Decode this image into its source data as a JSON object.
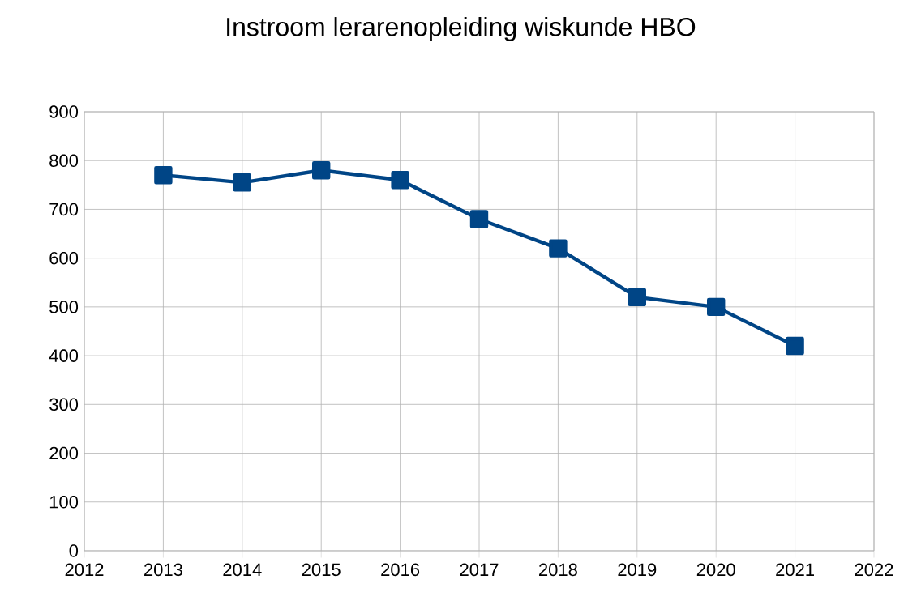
{
  "chart_data": {
    "type": "line",
    "title": "Instroom lerarenopleiding wiskunde HBO",
    "x": [
      2013,
      2014,
      2015,
      2016,
      2017,
      2018,
      2019,
      2020,
      2021
    ],
    "series": [
      {
        "color": "#004586",
        "values": [
          770,
          755,
          780,
          760,
          680,
          620,
          520,
          500,
          420
        ]
      }
    ],
    "xlim": [
      2012,
      2022
    ],
    "xticks": [
      2012,
      2013,
      2014,
      2015,
      2016,
      2017,
      2018,
      2019,
      2020,
      2021,
      2022
    ],
    "ylim": [
      0,
      900
    ],
    "yticks": [
      0,
      100,
      200,
      300,
      400,
      500,
      600,
      700,
      800,
      900
    ],
    "grid": true,
    "marker": "square",
    "line_style": "solid"
  }
}
